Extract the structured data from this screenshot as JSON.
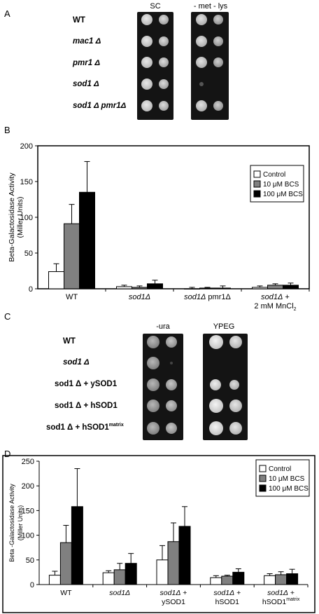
{
  "panels": {
    "a": {
      "letter": "A"
    },
    "b": {
      "letter": "B"
    },
    "c": {
      "letter": "C"
    },
    "d": {
      "letter": "D"
    }
  },
  "panel_a": {
    "conditions": [
      "SC",
      "- met - lys"
    ],
    "strains": [
      {
        "name": "WT",
        "italic": false
      },
      {
        "name": "mac1 Δ",
        "italic": true
      },
      {
        "name": "pmr1 Δ",
        "italic": true
      },
      {
        "name": "sod1 Δ",
        "italic": true
      },
      {
        "name": "sod1 Δ  pmr1Δ",
        "italic": true
      }
    ]
  },
  "panel_c": {
    "conditions": [
      "-ura",
      "YPEG"
    ],
    "strains": [
      {
        "name": "WT"
      },
      {
        "name": "sod1 Δ"
      },
      {
        "name": "sod1 Δ + ySOD1"
      },
      {
        "name": "sod1 Δ + hSOD1"
      },
      {
        "name": "sod1 Δ + hSOD1",
        "sup": "matrix"
      }
    ]
  },
  "chart_data": [
    {
      "type": "bar",
      "panel": "B",
      "ylabel": "Beta-Galactosidase Activity",
      "ylabel2": "(Miller Units)",
      "ylim": [
        0,
        200
      ],
      "yticks": [
        0,
        50,
        100,
        150,
        200
      ],
      "categories": [
        {
          "lines": [
            "WT"
          ]
        },
        {
          "lines": [
            "sod1Δ"
          ]
        },
        {
          "lines": [
            "sod1Δ pmr1Δ"
          ]
        },
        {
          "lines": [
            "sod1Δ +",
            "2 mM MnCl2"
          ]
        }
      ],
      "series": [
        {
          "name": "Control",
          "color": "#ffffff",
          "values": [
            24,
            3,
            0,
            2
          ],
          "errors": [
            11,
            2,
            2,
            2
          ]
        },
        {
          "name": "10 μM BCS",
          "color": "#808080",
          "values": [
            91,
            2,
            1,
            5
          ],
          "errors": [
            27,
            2,
            1,
            2
          ]
        },
        {
          "name": "100 μM BCS",
          "color": "#000000",
          "values": [
            135,
            7,
            1,
            5
          ],
          "errors": [
            43,
            5,
            3,
            3
          ]
        }
      ],
      "legend_position": "top-right"
    },
    {
      "type": "bar",
      "panel": "D",
      "ylabel": "Beta -Galactosidase Activity",
      "ylabel2": "(Miller Units)",
      "ylim": [
        0,
        250
      ],
      "yticks": [
        0,
        50,
        100,
        150,
        200,
        250
      ],
      "categories": [
        {
          "lines": [
            "WT"
          ]
        },
        {
          "lines": [
            "sod1Δ"
          ]
        },
        {
          "lines": [
            "sod1Δ +",
            "ySOD1"
          ]
        },
        {
          "lines": [
            "sod1Δ +",
            "hSOD1"
          ]
        },
        {
          "lines": [
            "sod1Δ +",
            "hSOD1"
          ],
          "sup": "matrix"
        }
      ],
      "series": [
        {
          "name": "Control",
          "color": "#ffffff",
          "values": [
            19,
            24,
            50,
            14,
            18
          ],
          "errors": [
            8,
            4,
            29,
            4,
            4
          ]
        },
        {
          "name": "10 μM BCS",
          "color": "#808080",
          "values": [
            85,
            30,
            87,
            17,
            20
          ],
          "errors": [
            35,
            13,
            38,
            2,
            6
          ]
        },
        {
          "name": "100 μM BCS",
          "color": "#000000",
          "values": [
            158,
            43,
            118,
            25,
            22
          ],
          "errors": [
            77,
            20,
            40,
            7,
            9
          ]
        }
      ],
      "legend_position": "top-right"
    }
  ]
}
